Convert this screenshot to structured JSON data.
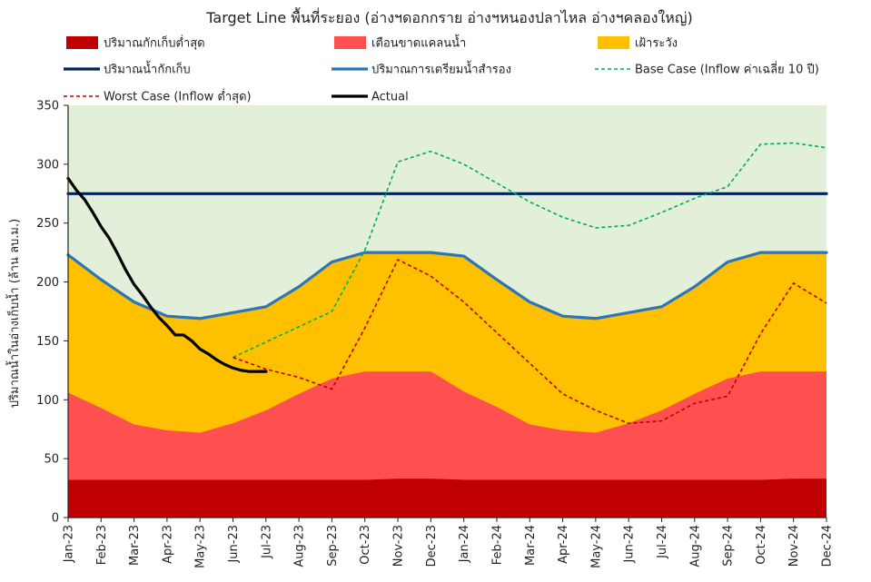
{
  "chart_data": {
    "type": "area",
    "title": "Target Line พื้นที่ระยอง (อ่างฯดอกกราย อ่างฯหนองปลาไหล อ่างฯคลองใหญ่)",
    "xlabel": "",
    "ylabel": "ปริมาณน้ำในอ่างเก็บน้ำ (ล้าน ลบ.ม.)",
    "ylim": [
      0,
      350
    ],
    "yticks": [
      0,
      50,
      100,
      150,
      200,
      250,
      300,
      350
    ],
    "grid": false,
    "legend_position": "top",
    "categories": [
      "Jan-23",
      "Feb-23",
      "Mar-23",
      "Apr-23",
      "May-23",
      "Jun-23",
      "Jul-23",
      "Aug-23",
      "Sep-23",
      "Oct-23",
      "Nov-23",
      "Dec-23",
      "Jan-24",
      "Feb-24",
      "Mar-24",
      "Apr-24",
      "May-24",
      "Jun-24",
      "Jul-24",
      "Aug-24",
      "Sep-24",
      "Oct-24",
      "Nov-24",
      "Dec-24"
    ],
    "zones": [
      {
        "name": "ปริมาณกักเก็บต่ำสุด",
        "color": "#c00000",
        "values": [
          32,
          32,
          32,
          32,
          32,
          32,
          32,
          32,
          32,
          32,
          33,
          33,
          32,
          32,
          32,
          32,
          32,
          32,
          32,
          32,
          32,
          32,
          33,
          33
        ]
      },
      {
        "name": "เตือนขาดแคลนน้ำ",
        "color": "#ff5050",
        "values": [
          106,
          93,
          79,
          74,
          72,
          80,
          91,
          105,
          118,
          124,
          124,
          124,
          107,
          94,
          79,
          74,
          72,
          80,
          91,
          105,
          118,
          124,
          124,
          124
        ]
      },
      {
        "name": "เฝ้าระวัง",
        "color": "#ffc000",
        "values": [
          223,
          202,
          183,
          171,
          169,
          174,
          179,
          196,
          217,
          225,
          225,
          225,
          222,
          202,
          183,
          171,
          169,
          174,
          179,
          196,
          217,
          225,
          225,
          225
        ]
      }
    ],
    "top_zone_color": "#e2efd9",
    "series": [
      {
        "name": "ปริมาณน้ำกักเก็บ",
        "color": "#002060",
        "style": "solid",
        "values": [
          275,
          275,
          275,
          275,
          275,
          275,
          275,
          275,
          275,
          275,
          275,
          275,
          275,
          275,
          275,
          275,
          275,
          275,
          275,
          275,
          275,
          275,
          275,
          275
        ]
      },
      {
        "name": "ปริมาณการเตรียมน้ำสำรอง",
        "color": "#2e75b6",
        "style": "solid",
        "values": [
          223,
          202,
          183,
          171,
          169,
          174,
          179,
          196,
          217,
          225,
          225,
          225,
          222,
          202,
          183,
          171,
          169,
          174,
          179,
          196,
          217,
          225,
          225,
          225
        ]
      },
      {
        "name": "Base Case (Inflow ค่าเฉลี่ย 10 ปี)",
        "color": "#00b050",
        "style": "dashed",
        "values": [
          null,
          null,
          null,
          null,
          null,
          136,
          149,
          162,
          175,
          227,
          302,
          311,
          300,
          284,
          268,
          255,
          246,
          248,
          259,
          271,
          281,
          317,
          318,
          314
        ]
      },
      {
        "name": "Worst Case (Inflow ต่ำสุด)",
        "color": "#c00000",
        "style": "dashed",
        "values": [
          null,
          null,
          null,
          null,
          null,
          136,
          126,
          119,
          109,
          161,
          219,
          205,
          183,
          157,
          131,
          105,
          91,
          80,
          82,
          97,
          103,
          156,
          199,
          182
        ]
      },
      {
        "name": "Actual",
        "color": "#000000",
        "style": "solid-thick",
        "x": [
          0,
          0.25,
          0.5,
          0.75,
          1,
          1.25,
          1.5,
          1.75,
          2,
          2.25,
          2.5,
          2.75,
          3,
          3.25,
          3.5,
          3.75,
          4,
          4.25,
          4.5,
          4.75,
          5,
          5.25,
          5.5,
          5.75,
          6
        ],
        "values": [
          288,
          278,
          270,
          259,
          247,
          237,
          224,
          210,
          198,
          189,
          179,
          170,
          163,
          155,
          155,
          150,
          143,
          139,
          134,
          130,
          127,
          125,
          124,
          124,
          124
        ]
      }
    ],
    "legend_rows": [
      [
        {
          "label": "ปริมาณกักเก็บต่ำสุด",
          "kind": "box",
          "color": "#c00000"
        },
        {
          "label": "เตือนขาดแคลนน้ำ",
          "kind": "box",
          "color": "#ff5050"
        },
        {
          "label": "เฝ้าระวัง",
          "kind": "box",
          "color": "#ffc000"
        }
      ],
      [
        {
          "label": "ปริมาณน้ำกักเก็บ",
          "kind": "line",
          "color": "#002060"
        },
        {
          "label": "ปริมาณการเตรียมน้ำสำรอง",
          "kind": "line",
          "color": "#2e75b6"
        },
        {
          "label": "Base Case (Inflow ค่าเฉลี่ย 10 ปี)",
          "kind": "dash",
          "color": "#00b050"
        }
      ],
      [
        {
          "label": "Worst Case (Inflow ต่ำสุด)",
          "kind": "dash",
          "color": "#c00000"
        },
        {
          "label": "Actual",
          "kind": "thick",
          "color": "#000000"
        }
      ]
    ]
  }
}
